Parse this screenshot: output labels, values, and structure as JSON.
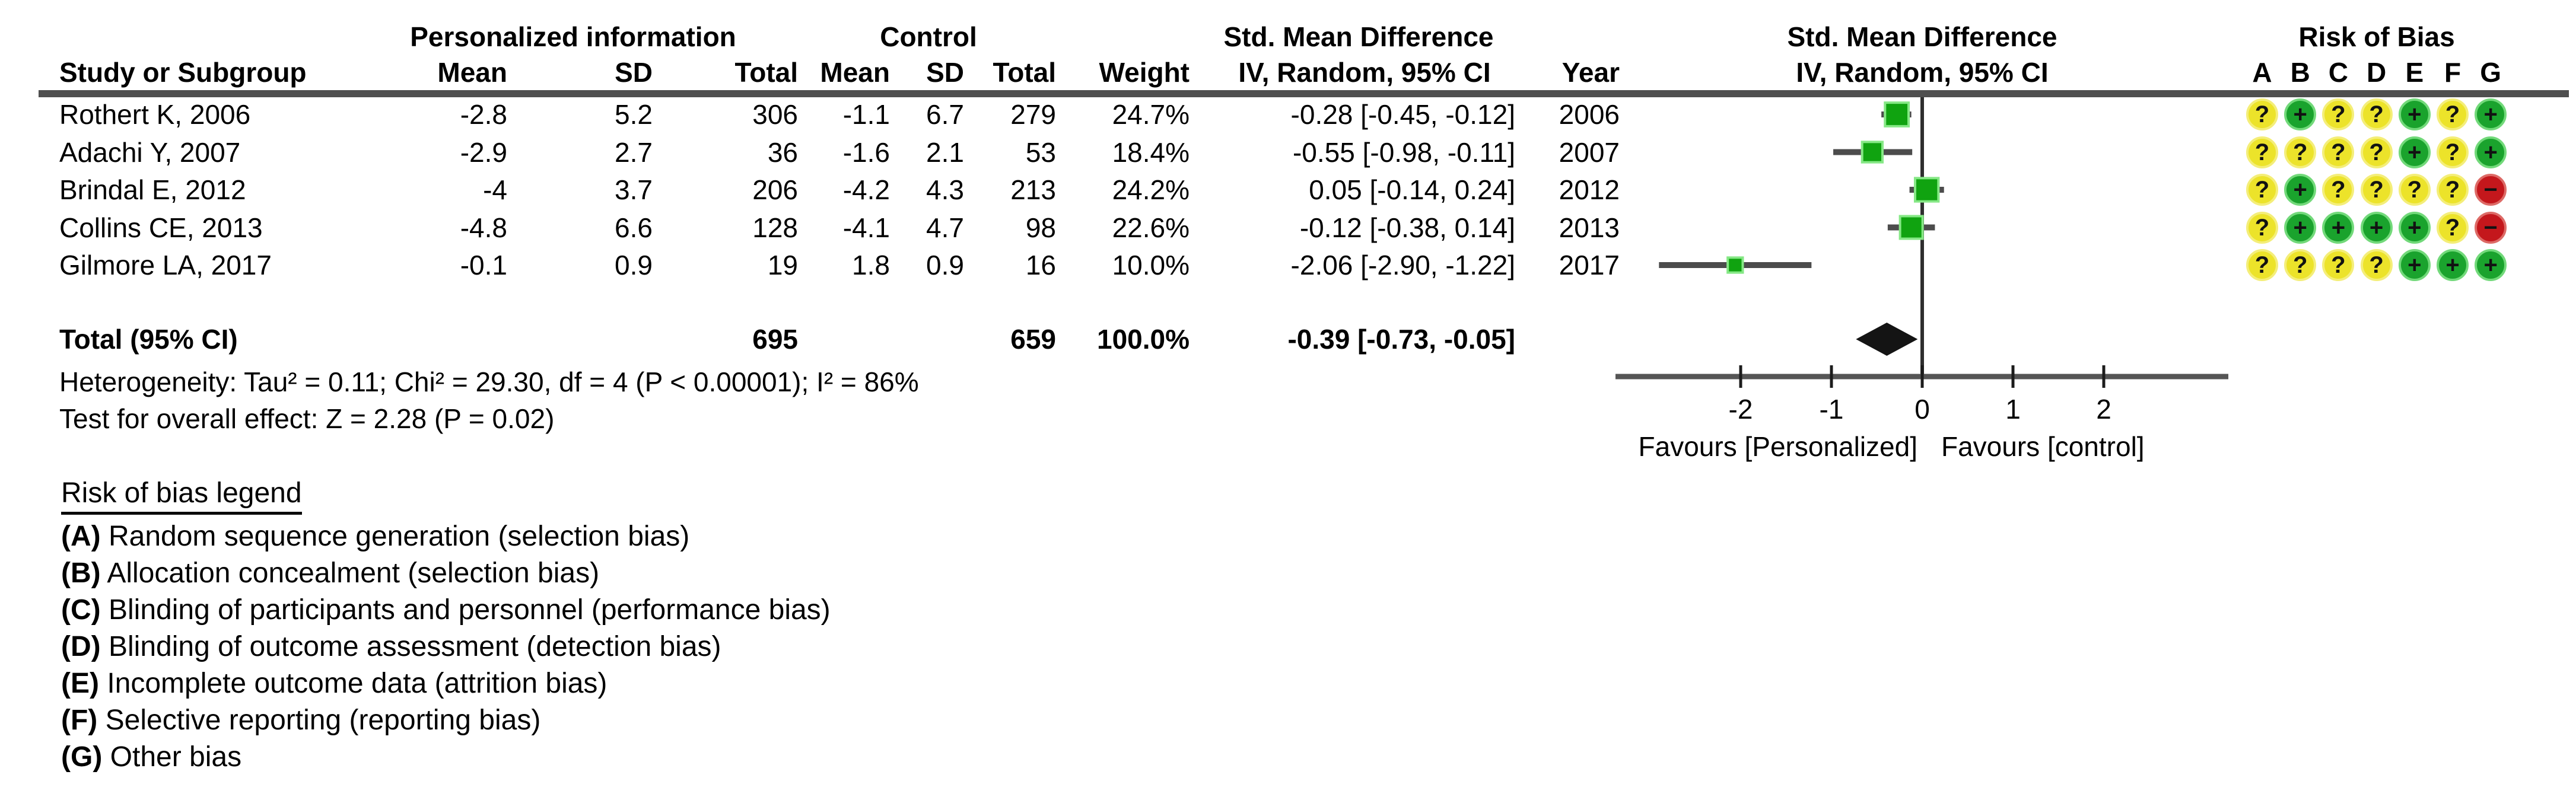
{
  "colors": {
    "rule": "#4f4f4f",
    "ci_line": "#4c4c4c",
    "marker_fill": "#10a310",
    "marker_ring": "#86e886",
    "diamond": "#141414",
    "axis_line": "#555555",
    "zero_line": "#2e2e2e",
    "tick": "#1c1c1c",
    "rob_unclear_bg": "#ece32a",
    "rob_unclear_ring": "#f4ee79",
    "rob_low_bg": "#1aa32d",
    "rob_low_ring": "#72d97a",
    "rob_high_bg": "#c4171c",
    "rob_high_ring": "#dd6a66",
    "rob_glyph": "#121212"
  },
  "header": {
    "group_personalized": "Personalized information",
    "group_control": "Control",
    "smd_table_line1": "Std. Mean Difference",
    "smd_table_line2": "IV, Random, 95% CI",
    "smd_plot_line1": "Std. Mean Difference",
    "smd_plot_line2": "IV, Random, 95% CI",
    "rob_title": "Risk of Bias",
    "rob_letters": [
      "A",
      "B",
      "C",
      "D",
      "E",
      "F",
      "G"
    ],
    "study_col": "Study or Subgroup",
    "mean": "Mean",
    "sd": "SD",
    "total": "Total",
    "weight": "Weight",
    "year": "Year"
  },
  "studies": [
    {
      "name": "Rothert K, 2006",
      "p_mean": "-2.8",
      "p_sd": "5.2",
      "p_total": "306",
      "c_mean": "-1.1",
      "c_sd": "6.7",
      "c_total": "279",
      "weight": "24.7%",
      "ci_text": "-0.28 [-0.45, -0.12]",
      "year": "2006",
      "effect": -0.28,
      "ci_lo": -0.45,
      "ci_hi": -0.12,
      "weight_pct": 24.7,
      "rob": [
        "?",
        "+",
        "?",
        "?",
        "+",
        "?",
        "+"
      ]
    },
    {
      "name": "Adachi Y, 2007",
      "p_mean": "-2.9",
      "p_sd": "2.7",
      "p_total": "36",
      "c_mean": "-1.6",
      "c_sd": "2.1",
      "c_total": "53",
      "weight": "18.4%",
      "ci_text": "-0.55 [-0.98, -0.11]",
      "year": "2007",
      "effect": -0.55,
      "ci_lo": -0.98,
      "ci_hi": -0.11,
      "weight_pct": 18.4,
      "rob": [
        "?",
        "?",
        "?",
        "?",
        "+",
        "?",
        "+"
      ]
    },
    {
      "name": "Brindal E, 2012",
      "p_mean": "-4",
      "p_sd": "3.7",
      "p_total": "206",
      "c_mean": "-4.2",
      "c_sd": "4.3",
      "c_total": "213",
      "weight": "24.2%",
      "ci_text": "0.05 [-0.14, 0.24]",
      "year": "2012",
      "effect": 0.05,
      "ci_lo": -0.14,
      "ci_hi": 0.24,
      "weight_pct": 24.2,
      "rob": [
        "?",
        "+",
        "?",
        "?",
        "?",
        "?",
        "-"
      ]
    },
    {
      "name": "Collins CE, 2013",
      "p_mean": "-4.8",
      "p_sd": "6.6",
      "p_total": "128",
      "c_mean": "-4.1",
      "c_sd": "4.7",
      "c_total": "98",
      "weight": "22.6%",
      "ci_text": "-0.12 [-0.38, 0.14]",
      "year": "2013",
      "effect": -0.12,
      "ci_lo": -0.38,
      "ci_hi": 0.14,
      "weight_pct": 22.6,
      "rob": [
        "?",
        "+",
        "+",
        "+",
        "+",
        "?",
        "-"
      ]
    },
    {
      "name": "Gilmore LA, 2017",
      "p_mean": "-0.1",
      "p_sd": "0.9",
      "p_total": "19",
      "c_mean": "1.8",
      "c_sd": "0.9",
      "c_total": "16",
      "weight": "10.0%",
      "ci_text": "-2.06 [-2.90, -1.22]",
      "year": "2017",
      "effect": -2.06,
      "ci_lo": -2.9,
      "ci_hi": -1.22,
      "weight_pct": 10.0,
      "rob": [
        "?",
        "?",
        "?",
        "?",
        "+",
        "+",
        "+"
      ]
    }
  ],
  "total": {
    "label": "Total (95% CI)",
    "p_total": "695",
    "c_total": "659",
    "weight": "100.0%",
    "ci_text": "-0.39 [-0.73, -0.05]",
    "effect": -0.39,
    "ci_lo": -0.73,
    "ci_hi": -0.05
  },
  "footer": {
    "heterogeneity": "Heterogeneity: Tau² = 0.11; Chi² = 29.30, df = 4 (P < 0.00001); I² = 86%",
    "overall_effect": "Test for overall effect: Z = 2.28 (P = 0.02)"
  },
  "axis": {
    "ticks": [
      -2,
      -1,
      0,
      1,
      2
    ],
    "favours_left": "Favours [Personalized]",
    "favours_right": "Favours [control]"
  },
  "legend": {
    "title": "Risk of bias legend",
    "items": [
      {
        "tag": "(A)",
        "text": "Random sequence generation (selection bias)"
      },
      {
        "tag": "(B)",
        "text": "Allocation concealment (selection bias)"
      },
      {
        "tag": "(C)",
        "text": "Blinding of participants and personnel (performance bias)"
      },
      {
        "tag": "(D)",
        "text": "Blinding of outcome assessment (detection bias)"
      },
      {
        "tag": "(E)",
        "text": "Incomplete outcome data (attrition bias)"
      },
      {
        "tag": "(F)",
        "text": "Selective reporting (reporting bias)"
      },
      {
        "tag": "(G)",
        "text": "Other bias"
      }
    ]
  },
  "chart_data": {
    "type": "scatter",
    "title": "Forest plot: Std. Mean Difference, IV, Random, 95% CI",
    "xlabel": "Std. Mean Difference",
    "xticks": [
      -2,
      -1,
      0,
      1,
      2
    ],
    "xlim": [
      -3.4,
      3.4
    ],
    "zero_line": 0,
    "favours": [
      "Favours [Personalized]",
      "Favours [control]"
    ],
    "series": [
      {
        "name": "Studies (green squares sized by weight, gray 95% CI lines)",
        "points": [
          {
            "label": "Rothert K, 2006",
            "x": -0.28,
            "ci": [
              -0.45,
              -0.12
            ],
            "weight_pct": 24.7
          },
          {
            "label": "Adachi Y, 2007",
            "x": -0.55,
            "ci": [
              -0.98,
              -0.11
            ],
            "weight_pct": 18.4
          },
          {
            "label": "Brindal E, 2012",
            "x": 0.05,
            "ci": [
              -0.14,
              0.24
            ],
            "weight_pct": 24.2
          },
          {
            "label": "Collins CE, 2013",
            "x": -0.12,
            "ci": [
              -0.38,
              0.14
            ],
            "weight_pct": 22.6
          },
          {
            "label": "Gilmore LA, 2017",
            "x": -2.06,
            "ci": [
              -2.9,
              -1.22
            ],
            "weight_pct": 10.0
          }
        ]
      }
    ],
    "summary_diamond": {
      "label": "Total (95% CI)",
      "x": -0.39,
      "ci": [
        -0.73,
        -0.05
      ]
    },
    "totals": {
      "personalized_n": 695,
      "control_n": 659,
      "weight": "100.0%"
    },
    "heterogeneity": {
      "tau2": 0.11,
      "chi2": 29.3,
      "df": 4,
      "p": "< 0.00001",
      "i2": "86%"
    },
    "overall_effect": {
      "z": 2.28,
      "p": 0.02
    }
  }
}
